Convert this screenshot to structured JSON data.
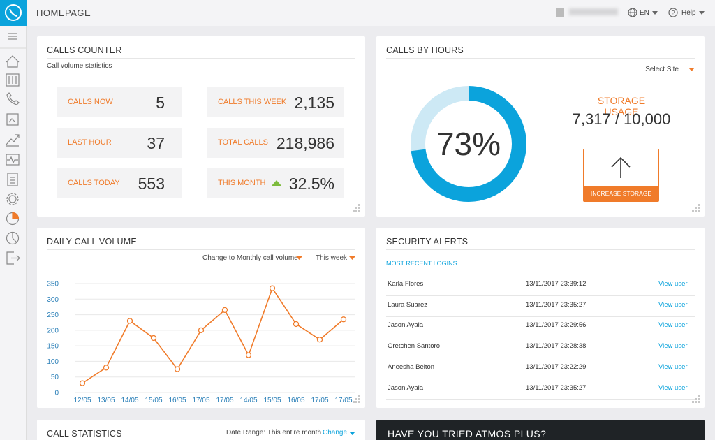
{
  "header": {
    "title": "HOMEPAGE",
    "language": "EN",
    "help": "Help"
  },
  "calls_counter": {
    "title": "CALLS COUNTER",
    "subtitle": "Call volume statistics",
    "stats": [
      {
        "label": "CALLS NOW",
        "value": "5"
      },
      {
        "label": "LAST HOUR",
        "value": "37"
      },
      {
        "label": "CALLS TODAY",
        "value": "553"
      },
      {
        "label": "CALLS THIS WEEK",
        "value": "2,135"
      },
      {
        "label": "TOTAL CALLS",
        "value": "218,986"
      },
      {
        "label": "THIS MONTH",
        "value": "32.5%"
      }
    ]
  },
  "storage": {
    "select": "Select Site",
    "title": "STORAGE USAGE",
    "usage": "7,317 / 10,000",
    "button": "INCREASE STORAGE"
  },
  "daily_controls": {
    "change": "Change to Monthly call volume",
    "period": "This week"
  },
  "chart_data": [
    {
      "type": "donut",
      "title": "CALLS BY HOURS",
      "values": [
        73
      ],
      "value_labels": [
        "73%"
      ],
      "color": "#0ba3dc",
      "track_color": "#cde9f5"
    },
    {
      "type": "line",
      "title": "DAILY CALL VOLUME",
      "categories": [
        "12/05",
        "13/05",
        "14/05",
        "15/05",
        "16/05",
        "17/05",
        "17/05",
        "14/05",
        "15/05",
        "16/05",
        "17/05",
        "17/05"
      ],
      "values": [
        30,
        80,
        230,
        175,
        75,
        200,
        265,
        120,
        335,
        220,
        170,
        235
      ],
      "color": "#f07b2a",
      "ylim": [
        0,
        350
      ],
      "yticks": [
        0,
        50,
        100,
        150,
        200,
        250,
        300,
        350
      ],
      "grid": true
    }
  ],
  "security": {
    "title": "SECURITY ALERTS",
    "subtitle": "MOST RECENT LOGINS",
    "rows": [
      [
        "Karla Flores",
        "13/11/2017 23:39:12",
        "View user"
      ],
      [
        "Laura Suarez",
        "13/11/2017 23:35:27",
        "View user"
      ],
      [
        "Jason Ayala",
        "13/11/2017 23:29:56",
        "View user"
      ],
      [
        "Gretchen Santoro",
        "13/11/2017 23:28:38",
        "View user"
      ],
      [
        "Aneesha Belton",
        "13/11/2017 23:22:29",
        "View user"
      ],
      [
        "Jason Ayala",
        "13/11/2017 23:35:27",
        "View user"
      ]
    ]
  },
  "call_statistics": {
    "title": "CALL STATISTICS",
    "range": "Date Range: This entire month",
    "change": "Change"
  },
  "promo": {
    "title": "HAVE YOU TRIED ATMOS PLUS?"
  }
}
